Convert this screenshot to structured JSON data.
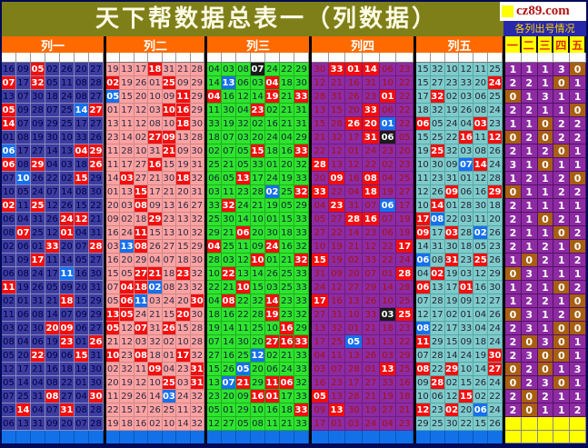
{
  "window": {
    "title": "天下帮数据总表一（列数据）",
    "watermark": "cz89.com",
    "info_label": "各列出号情况"
  },
  "colors": {
    "title_bg": "#7f7f19",
    "header_orange": "#ff6a00",
    "col1_bg": "#3d3da0",
    "col2_bg": "#ffa2a2",
    "col3_bg": "#2ee42e",
    "col4_bg": "#8d2ba2",
    "col5_bg": "#7fcbcb",
    "red_mark": "#f50d0d",
    "blue_mark": "#1670ee",
    "black_mark": "#1b1b1b",
    "count_purple": "#8d2ba2",
    "count_zero_brown": "#a85f11",
    "yellow": "#ffff00",
    "footer_blue": "#1271e8"
  },
  "chart_data": {
    "type": "table",
    "title": "天下帮数据总表一（列数据）",
    "columns": [
      {
        "label": "列一",
        "cells": 7
      },
      {
        "label": "列二",
        "cells": 7
      },
      {
        "label": "列三",
        "cells": 7
      },
      {
        "label": "列四",
        "cells": 6
      },
      {
        "label": "列五",
        "cells": 6
      }
    ],
    "right_headers": [
      "一",
      "二",
      "三",
      "四",
      "五"
    ],
    "mark_legend": {
      "R": "red-highlight (counted in right section)",
      "B": "blue-highlight (not counted)",
      "K": "black-highlight (counted)"
    },
    "rows": [
      [
        "16 09 05R 02 26 20 27",
        "19 13 17 18R 31 21 28",
        "04 03 08 07K 24 22 29",
        "30 33R 01R 14R 06 23",
        "15 32 10 12 11 25",
        "1 1 1 3 0"
      ],
      [
        "07R 17 32R 05 11 08 28",
        "02R 19 26 01 25R 09 29",
        "14 13B 06 03 04R 18 30",
        "12 21 16 31 10 22",
        "15 27 23 33 20 24R",
        "2 2 1 0 1"
      ],
      [
        "13 07 30 18 24 08 27",
        "05B 15 20 10 09 11R 29",
        "04R 16 12 14 19R 21 33R",
        "28 31 26 23 01R 22",
        "17 32R 02 03 06 25",
        "0 1 3 1 1"
      ],
      [
        "05R 09 28 07 25 14B 27R",
        "01 17 12 03 10R 16R 29",
        "11 30 04 23R 02 21 31",
        "13 15 20 33R 06 22",
        "18 32 19 26 08 24",
        "2 2 1 1 0"
      ],
      [
        "14R 07 09 29 25 17 27",
        "13 11 12 08 10 18R 30",
        "33 19 32 02 16 21 31",
        "15 28 26R 20R 01B 22",
        "06R 05 24 04 03R 23",
        "1 1 0 2 2"
      ],
      [
        "01 08 19 30 10 33 26",
        "23 14 02 27R 09R 13 28",
        "18 07 03 20 24 04 29",
        "21 32 17 31R 06K 05",
        "15 25 22 16R 11 12R",
        "0 2 0 2 2"
      ],
      [
        "06B 17 27 14 13 04R 29R",
        "11 28 10 31 21R 09 30",
        "02 07 05 15R 18 16 33R",
        "22 12 01 24 23 20",
        "19 25R 32 03 08 26",
        "2 1 2 0 1"
      ],
      [
        "06R 08 29R 04 03 18 26R",
        "11 17 27 16R 15 19 31",
        "25 21 05 33 01 20 32",
        "28R 13 12 22 02 23",
        "10 30 09 07B 14R 24",
        "3 1 0 1 1"
      ],
      [
        "07 10B 26 22 02 15R 29",
        "14 03R 27 21 30 18R 32",
        "06 05 13R 17 24 19 33",
        "20 09R 16 08R 04 25",
        "11 23 31 01 12 28",
        "1 2 1 2 0"
      ],
      [
        "10 05 24 07 14 08 30",
        "01 13 15R 17 21 20 31",
        "03 11 23 28 02B 25 32R",
        "33R 22 04 18R 19 27",
        "12 26 09R 06 16 29R",
        "0 1 1 2 2"
      ],
      [
        "02R 11 25R 12 26 15 22",
        "20 03 08R 09 13 16 27",
        "33 32R 24 21 19 05 29",
        "04 23R 31 07 06B 17",
        "10 14R 01 28 30 18",
        "2 1 1 1 1"
      ],
      [
        "06 04 31 26 24R 12R 21",
        "09 02 18 29R 23 13 32",
        "25 30 14 10 01 15 33",
        "05 27 28R 16R 07 19",
        "17R 08B 22 03 11 20",
        "2 1 0 2 1"
      ],
      [
        "08 07R 25 12 01R 04 31",
        "16 24 11R 15 13 10 32",
        "29 21 06R 20 30 18 33",
        "27 22 14 23 06 19",
        "09R 17 03R 28 02B 26",
        "2 1 1 0 2"
      ],
      [
        "02 06 01 33R 20 07 28R",
        "03 13B 08R 26 27 15 29",
        "04R 25 11 09 24R 16 32",
        "10 19 21 12 22 17R",
        "14 31 30 18 05 23",
        "2 1 2 1 0"
      ],
      [
        "13 09 17R 11 14 05 27",
        "16 20 29 04 07 18 30",
        "28 03 12 10R 01 21 32R",
        "15R 19 02 33 22 24",
        "06B 08 31R 23 25R 26",
        "1 0 2 1 2"
      ],
      [
        "06 08 24 17 11B 16 30",
        "15 05 27R 21R 18 23R 32",
        "10 22R 13 14 26 25 33",
        "31 09 20 07 01 28R",
        "04 02R 19 03 12 29",
        "0 3 1 1 1"
      ],
      [
        "11R 19 26 05 09 20 31",
        "07 04R 18R 02B 08 23 32",
        "22 21 10R 15 03 25 33",
        "24 12 27 29 14 28",
        "06R 13 17 01R 16 30",
        "1 2 1 0 2"
      ],
      [
        "02 01 31 21 18R 15 29",
        "05 06R 11B 03 24 20 30R",
        "04 08R 22 32 14R 23 33",
        "17R 16 13 26 10 25",
        "07 28 19 09 12 27",
        "1 2 2 1 0"
      ],
      [
        "11 06 08 14 07 09 29",
        "13R 05R 24 21 15 20R 30",
        "18 16 22 28 19R 23 32",
        "27 31 10 33 03K 25R",
        "12 17 02 01 04 26",
        "0 3 1 2 0"
      ],
      [
        "03 02 30 20R 09R 06 27",
        "05R 12 07R 31 26R 15 28",
        "19 14 11 25 10 16R 29",
        "13 32 01 21 18 23",
        "08B 22 17 33 04 24",
        "2 3 1 0 0"
      ],
      [
        "08 04 06 19 23R 01 26R",
        "21 12 03 32 02 10 28",
        "07 14 30 20 27R 16R 33R",
        "17 25 05B 31 13 22",
        "11R 29 15 09 18 24",
        "2 0 3 0 1"
      ],
      [
        "05 20 22R 09 06 15R 31",
        "10R 23 08R 18 01 17R 32",
        "27 16 25 12B 02 21 33",
        "04 11 13 26 03 29",
        "07 28 14 24 19 30R",
        "2 3 0 0 1"
      ],
      [
        "12 17 21 16 18 19 30",
        "02 32 11 09R 04 23 31R",
        "15 26 05B 20 06 24 33",
        "03 07 28 01 13R 25",
        "08R 22 29R 10 14 27R",
        "0 2 0 1 3"
      ],
      [
        "05 14 04 08 22 01 30",
        "20 19 12 10 25R 03 31R",
        "13 07B 21R 29 11R 06R 32",
        "16 23 17 27 33 16",
        "09 28R 02 15 26 24",
        "0 2 3 0 1"
      ],
      [
        "07 25 31 08R 27 04 30R",
        "11 29 26 14 03B 24 32",
        "23 20 09 16R 01R 17 33",
        "05R 13 28 21 19 18",
        "10 06 12 15R 02 22",
        "2 0 2 1 1"
      ],
      [
        "03 14R 04 07 31R 08 28",
        "22 15 17 26 25 11 32",
        "05 01 29 10 16 18 33R",
        "09 13R 30 19 27 21",
        "12R 23 02R 20 06B 24",
        "2 0 1 1 2"
      ],
      [
        "06 13 31 09 20 07 28",
        "19 18 16 02 10 14 32",
        "12 27 05 08 11 21 33",
        "17 01 03 24 04 23",
        "29 25 30 22 15 26",
        ""
      ]
    ]
  }
}
